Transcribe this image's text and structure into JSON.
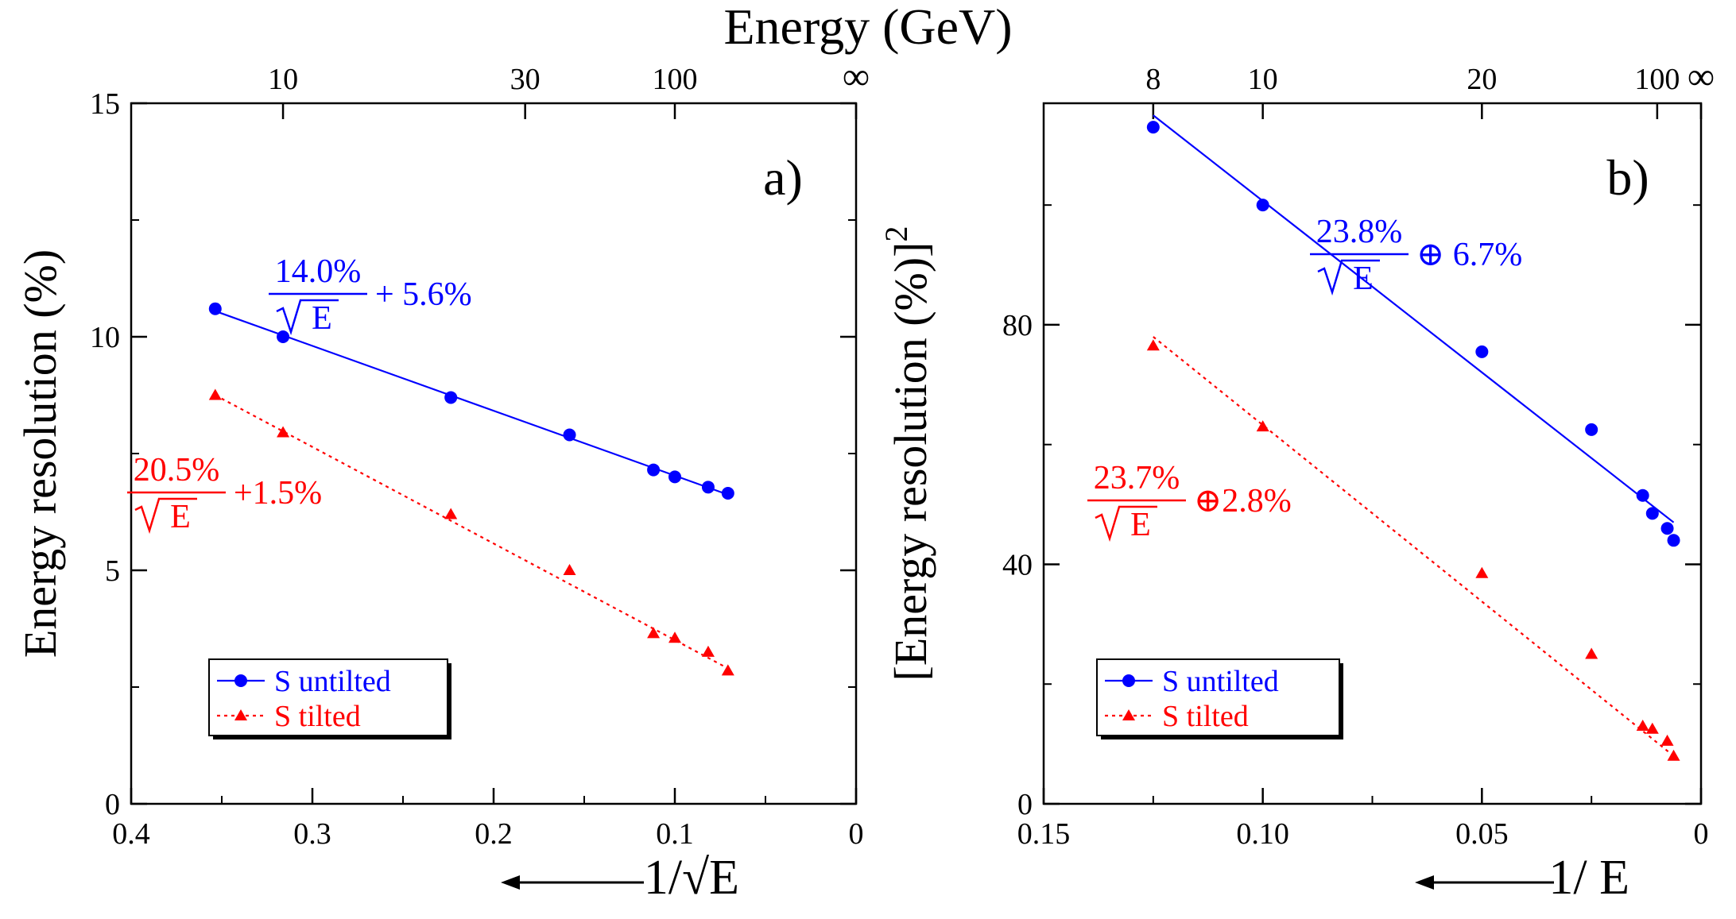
{
  "figure_title": "Energy (GeV)",
  "colors": {
    "untilted": "#0000ff",
    "tilted": "#ff0000",
    "axis": "#000000"
  },
  "chart_data": [
    {
      "id": "a",
      "type": "scatter",
      "panel_label": "a)",
      "ylabel": "Energy resolution (%)",
      "xlabel": "1/√E",
      "xlabel_arrow": "←",
      "x_reversed": true,
      "xlim": [
        0,
        0.4
      ],
      "ylim": [
        0,
        15
      ],
      "xticks": [
        0.4,
        0.3,
        0.2,
        0.1,
        0
      ],
      "xtick_labels": [
        "0.4",
        "0.3",
        "0.2",
        "0.1",
        "0"
      ],
      "xminor": [
        0.35,
        0.25,
        0.15,
        0.05
      ],
      "yticks": [
        0,
        5,
        10,
        15
      ],
      "ytick_labels": [
        "0",
        "5",
        "10",
        "15"
      ],
      "yminor": [
        2.5,
        7.5,
        12.5
      ],
      "top_axis_label": "Energy (GeV)",
      "top_ticks": [
        {
          "label": "10",
          "x": 0.3162
        },
        {
          "label": "30",
          "x": 0.1826
        },
        {
          "label": "100",
          "x": 0.1
        },
        {
          "label": "∞",
          "x": 0
        }
      ],
      "series": [
        {
          "name": "S untilted",
          "marker": "circle",
          "line": "solid",
          "color": "#0000ff",
          "points": [
            [
              0.3536,
              10.6
            ],
            [
              0.3162,
              10.0
            ],
            [
              0.2236,
              8.7
            ],
            [
              0.1581,
              7.9
            ],
            [
              0.1118,
              7.15
            ],
            [
              0.1,
              7.0
            ],
            [
              0.0816,
              6.78
            ],
            [
              0.0707,
              6.65
            ]
          ],
          "fit_line": [
            [
              0.3536,
              10.55
            ],
            [
              0.0707,
              6.62
            ]
          ],
          "annotation": {
            "numerator": "14.0%",
            "denominator": "E",
            "suffix": "+ 5.6%"
          }
        },
        {
          "name": "S tilted",
          "marker": "triangle",
          "line": "dotted",
          "color": "#ff0000",
          "points": [
            [
              0.3536,
              8.75
            ],
            [
              0.3162,
              7.95
            ],
            [
              0.2236,
              6.2
            ],
            [
              0.1581,
              5.0
            ],
            [
              0.1118,
              3.65
            ],
            [
              0.1,
              3.55
            ],
            [
              0.0816,
              3.25
            ],
            [
              0.0707,
              2.85
            ]
          ],
          "fit_line": [
            [
              0.3536,
              8.75
            ],
            [
              0.0707,
              2.9
            ]
          ],
          "annotation": {
            "numerator": "20.5%",
            "denominator": "E",
            "suffix": "+1.5%"
          }
        }
      ],
      "legend": {
        "placement": "bottom-left",
        "entries": [
          "S untilted",
          "S tilted"
        ]
      }
    },
    {
      "id": "b",
      "type": "scatter",
      "panel_label": "b)",
      "ylabel": "[Energy resolution (%)]",
      "ylabel_superscript": "2",
      "xlabel": "1/ E",
      "xlabel_arrow": "←",
      "x_reversed": true,
      "xlim": [
        0,
        0.15
      ],
      "ylim": [
        0,
        117
      ],
      "xticks": [
        0.15,
        0.1,
        0.05,
        0
      ],
      "xtick_labels": [
        "0.15",
        "0.10",
        "0.05",
        "0"
      ],
      "xminor": [
        0.125,
        0.075,
        0.025
      ],
      "yticks": [
        0,
        40,
        80
      ],
      "ytick_labels": [
        "0",
        "40",
        "80"
      ],
      "yminor": [
        20,
        60,
        100
      ],
      "top_ticks": [
        {
          "label": "8",
          "x": 0.125
        },
        {
          "label": "10",
          "x": 0.1
        },
        {
          "label": "20",
          "x": 0.05
        },
        {
          "label": "100",
          "x": 0.01
        },
        {
          "label": "∞",
          "x": 0
        }
      ],
      "series": [
        {
          "name": "S untilted",
          "marker": "circle",
          "line": "solid",
          "color": "#0000ff",
          "points": [
            [
              0.125,
              113
            ],
            [
              0.1,
              100
            ],
            [
              0.05,
              75.5
            ],
            [
              0.025,
              62.5
            ],
            [
              0.0133,
              51.5
            ],
            [
              0.0111,
              48.5
            ],
            [
              0.0077,
              46
            ],
            [
              0.00625,
              44
            ]
          ],
          "fit_line": [
            [
              0.125,
              115
            ],
            [
              0.00625,
              47
            ]
          ],
          "annotation": {
            "numerator": "23.8%",
            "denominator": "E",
            "suffix": "⊕ 6.7%"
          }
        },
        {
          "name": "S tilted",
          "marker": "triangle",
          "line": "dotted",
          "color": "#ff0000",
          "points": [
            [
              0.125,
              76.5
            ],
            [
              0.1,
              63
            ],
            [
              0.05,
              38.5
            ],
            [
              0.025,
              25
            ],
            [
              0.0133,
              13
            ],
            [
              0.0111,
              12.5
            ],
            [
              0.0077,
              10.5
            ],
            [
              0.00625,
              8
            ]
          ],
          "fit_line": [
            [
              0.125,
              78
            ],
            [
              0.00625,
              8
            ]
          ],
          "annotation": {
            "numerator": "23.7%",
            "denominator": "E",
            "suffix": "⊕2.8%"
          }
        }
      ],
      "legend": {
        "placement": "bottom-left",
        "entries": [
          "S untilted",
          "S tilted"
        ]
      }
    }
  ]
}
